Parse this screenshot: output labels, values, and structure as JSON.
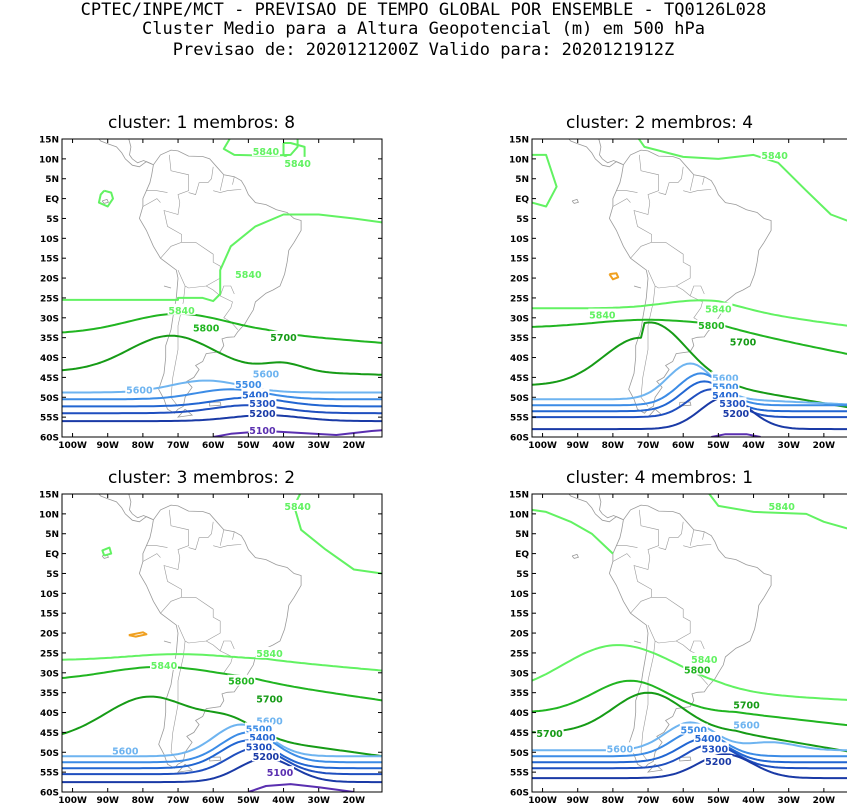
{
  "header": {
    "line1": "CPTEC/INPE/MCT - PREVISAO DE TEMPO GLOBAL POR ENSEMBLE - TQ0126L028",
    "line2": "Cluster Medio para a Altura Geopotencial (m) em 500 hPa",
    "line3": "Previsao de: 2020121200Z   Valido para: 2020121912Z"
  },
  "axes": {
    "lat_labels": [
      "15N",
      "10N",
      "5N",
      "EQ",
      "5S",
      "10S",
      "15S",
      "20S",
      "25S",
      "30S",
      "35S",
      "40S",
      "45S",
      "50S",
      "55S",
      "60S"
    ],
    "lon_labels": [
      "100W",
      "90W",
      "80W",
      "70W",
      "60W",
      "50W",
      "40W",
      "30W",
      "20W"
    ]
  },
  "colors": {
    "c5840": "#62f262",
    "c5800": "#21b521",
    "c5700": "#169b16",
    "c5600": "#6eb4f0",
    "c5500": "#3c8ce6",
    "c5400": "#2266d2",
    "c5300": "#1f4fbf",
    "c5200": "#1a3aa6",
    "c5100": "#5a2fb0",
    "c5880": "#f0a020",
    "coast": "#9a9a9a"
  },
  "panels": [
    {
      "title": "cluster: 1   membros: 8",
      "contour_labels": [
        {
          "value": "5840",
          "color": "c5840"
        },
        {
          "value": "5840",
          "color": "c5840"
        },
        {
          "value": "5840",
          "color": "c5840"
        },
        {
          "value": "5840",
          "color": "c5840"
        },
        {
          "value": "5800",
          "color": "c5800"
        },
        {
          "value": "5700",
          "color": "c5700"
        },
        {
          "value": "5600",
          "color": "c5600"
        },
        {
          "value": "5600",
          "color": "c5600"
        },
        {
          "value": "5500",
          "color": "c5500"
        },
        {
          "value": "5400",
          "color": "c5400"
        },
        {
          "value": "5300",
          "color": "c5300"
        },
        {
          "value": "5200",
          "color": "c5200"
        },
        {
          "value": "5100",
          "color": "c5100"
        }
      ]
    },
    {
      "title": "cluster: 2   membros: 4",
      "contour_labels": [
        {
          "value": "5840",
          "color": "c5840"
        },
        {
          "value": "5840",
          "color": "c5840"
        },
        {
          "value": "5840",
          "color": "c5840"
        },
        {
          "value": "5800",
          "color": "c5800"
        },
        {
          "value": "5700",
          "color": "c5700"
        },
        {
          "value": "5600",
          "color": "c5600"
        },
        {
          "value": "5500",
          "color": "c5500"
        },
        {
          "value": "5400",
          "color": "c5400"
        },
        {
          "value": "5300",
          "color": "c5300"
        },
        {
          "value": "5200",
          "color": "c5200"
        }
      ]
    },
    {
      "title": "cluster: 3   membros: 2",
      "contour_labels": [
        {
          "value": "5840",
          "color": "c5840"
        },
        {
          "value": "5840",
          "color": "c5840"
        },
        {
          "value": "5840",
          "color": "c5840"
        },
        {
          "value": "5800",
          "color": "c5800"
        },
        {
          "value": "5700",
          "color": "c5700"
        },
        {
          "value": "5600",
          "color": "c5600"
        },
        {
          "value": "5600",
          "color": "c5600"
        },
        {
          "value": "5500",
          "color": "c5500"
        },
        {
          "value": "5400",
          "color": "c5400"
        },
        {
          "value": "5300",
          "color": "c5300"
        },
        {
          "value": "5200",
          "color": "c5200"
        },
        {
          "value": "5100",
          "color": "c5100"
        }
      ]
    },
    {
      "title": "cluster: 4   membros: 1",
      "contour_labels": [
        {
          "value": "5840",
          "color": "c5840"
        },
        {
          "value": "5840",
          "color": "c5840"
        },
        {
          "value": "5800",
          "color": "c5800"
        },
        {
          "value": "5700",
          "color": "c5700"
        },
        {
          "value": "5700",
          "color": "c5700"
        },
        {
          "value": "5600",
          "color": "c5600"
        },
        {
          "value": "5600",
          "color": "c5600"
        },
        {
          "value": "5500",
          "color": "c5500"
        },
        {
          "value": "5400",
          "color": "c5400"
        },
        {
          "value": "5300",
          "color": "c5300"
        },
        {
          "value": "5200",
          "color": "c5200"
        }
      ]
    }
  ]
}
